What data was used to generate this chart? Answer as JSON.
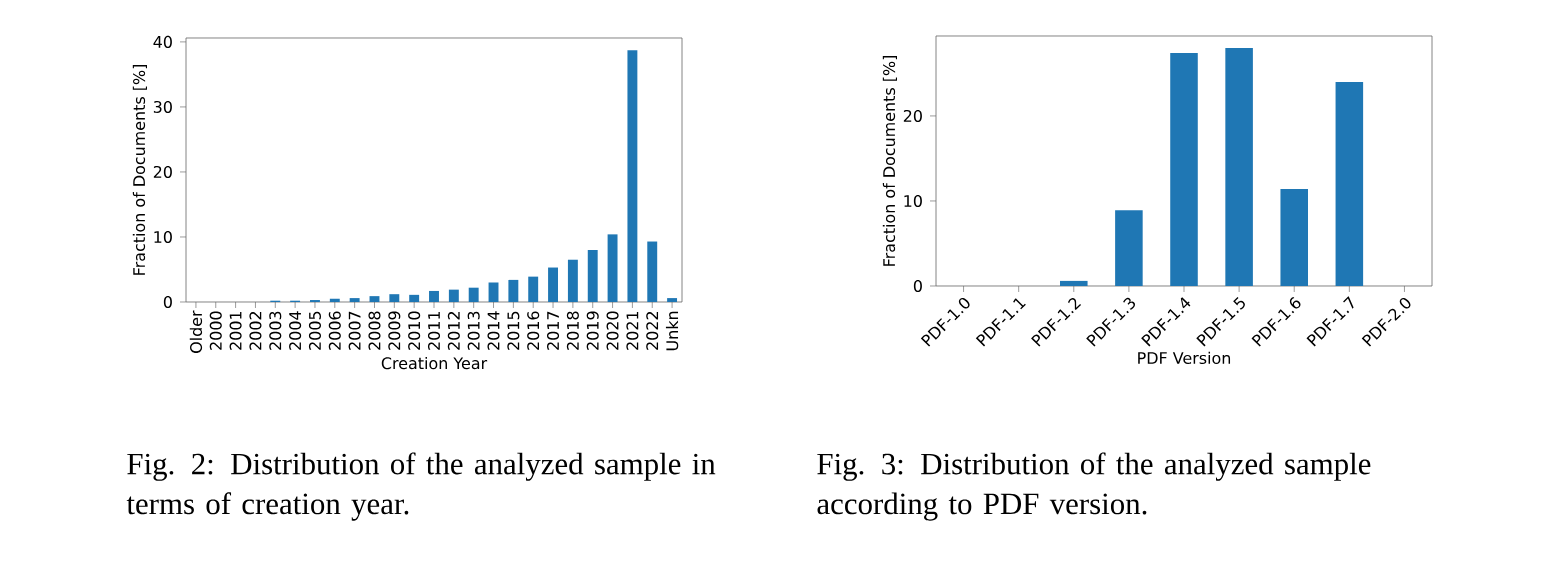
{
  "chart_data": [
    {
      "type": "bar",
      "categories": [
        "Older",
        "2000",
        "2001",
        "2002",
        "2003",
        "2004",
        "2005",
        "2006",
        "2007",
        "2008",
        "2009",
        "2010",
        "2011",
        "2012",
        "2013",
        "2014",
        "2015",
        "2016",
        "2017",
        "2018",
        "2019",
        "2020",
        "2021",
        "2022",
        "Unkn"
      ],
      "values": [
        0,
        0,
        0,
        0,
        0.2,
        0.2,
        0.3,
        0.5,
        0.6,
        0.9,
        1.2,
        1.1,
        1.7,
        1.9,
        2.2,
        3.0,
        3.4,
        3.9,
        5.3,
        6.5,
        8.0,
        10.4,
        38.7,
        9.3,
        0.6
      ],
      "color": "#1f77b4",
      "xlabel": "Creation Year",
      "ylabel": "Fraction of Documents [%]",
      "ylim": [
        0,
        40.6
      ],
      "yticks": [
        0,
        10,
        20,
        30,
        40
      ],
      "annotations": [
        "Fig. 2: Distribution of the analyzed sample in terms of creation year."
      ]
    },
    {
      "type": "bar",
      "categories": [
        "PDF-1.0",
        "PDF-1.1",
        "PDF-1.2",
        "PDF-1.3",
        "PDF-1.4",
        "PDF-1.5",
        "PDF-1.6",
        "PDF-1.7",
        "PDF-2.0"
      ],
      "values": [
        0,
        0,
        0.6,
        8.9,
        27.4,
        28.0,
        11.4,
        24.0,
        0
      ],
      "color": "#1f77b4",
      "xlabel": "PDF Version",
      "ylabel": "Fraction of Documents [%]",
      "ylim": [
        0,
        29.4
      ],
      "yticks": [
        0,
        10,
        20
      ],
      "annotations": [
        "Fig. 3: Distribution of the analyzed sample according to PDF version."
      ]
    }
  ]
}
